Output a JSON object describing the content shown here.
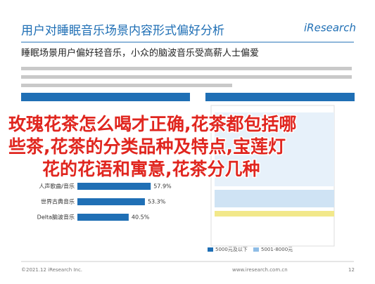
{
  "header": {
    "title": "用户对睡眠音乐场景内容形式偏好分析",
    "subtitle": "睡眠场景用户偏好轻音乐，小众的脑波音乐受高薪人士偏爱",
    "brand": "iResearch"
  },
  "overlay": [
    "玫瑰花茶怎么喝才正确,花茶都包括哪",
    "些茶,花茶的分类品种及特点,宝莲灯",
    "花的花语和寓意,花茶分几种"
  ],
  "left_chart": {
    "categories": [
      "人声歌曲/音乐",
      "世界古典音乐",
      "Delta脑波音乐"
    ],
    "values": [
      57.9,
      53.3,
      40.5
    ],
    "value_labels": [
      "57.9%",
      "53.3%",
      "40.5%"
    ]
  },
  "right_chart": {
    "legend": [
      "5000元及以下",
      "5001-8000元"
    ]
  },
  "footer": {
    "left": "©2021.12 iResearch Inc.",
    "right": "www.iresearch.com.cn",
    "page": "12"
  }
}
